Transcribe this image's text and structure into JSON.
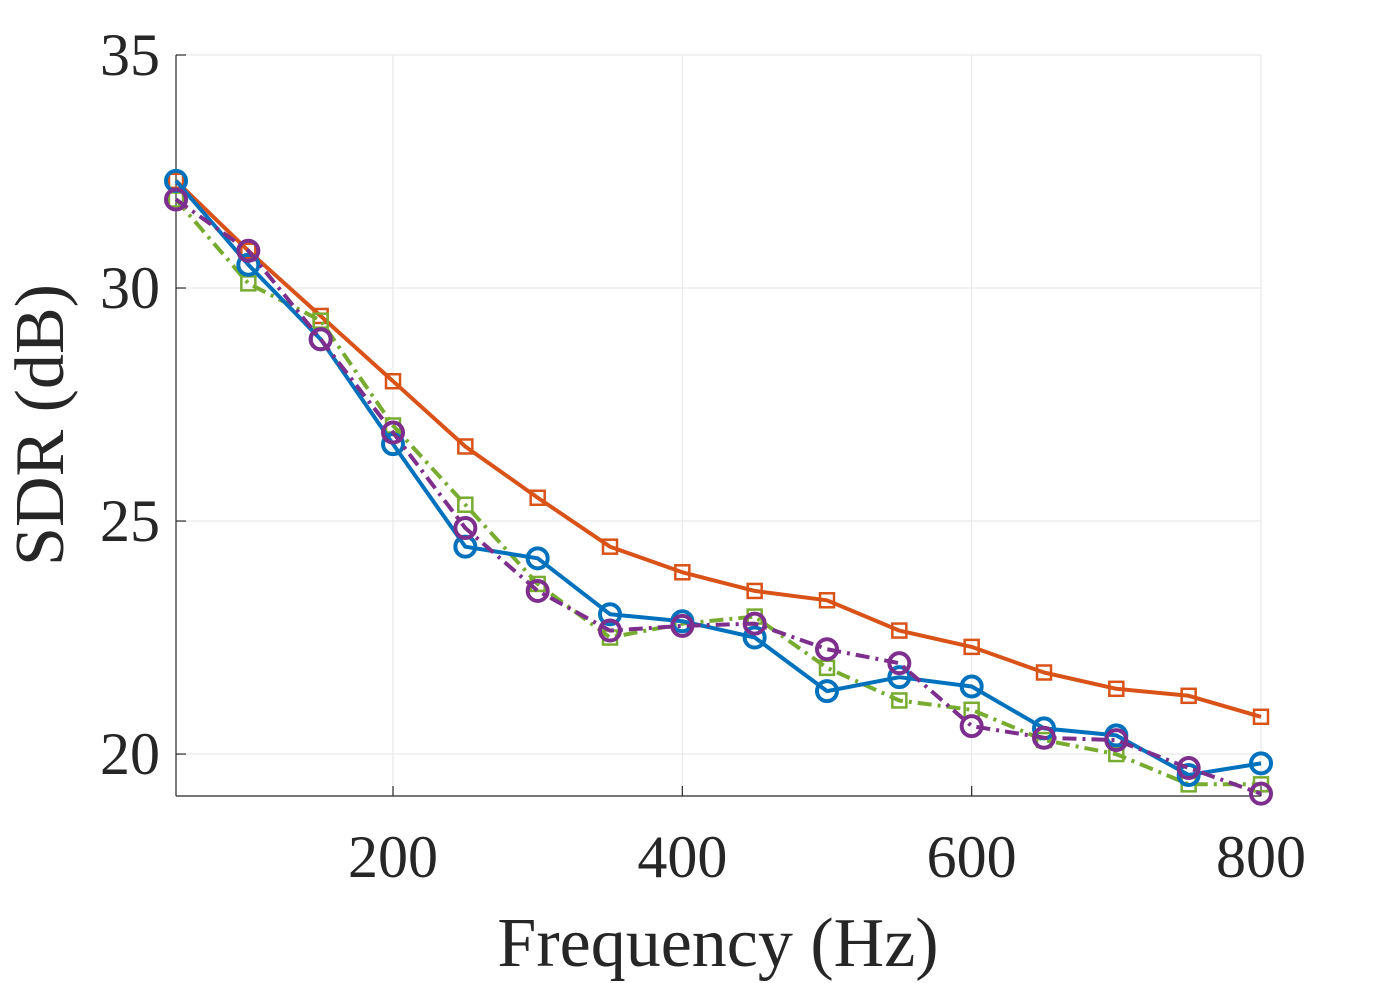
{
  "chart_data": {
    "type": "line",
    "title": "",
    "xlabel": "Frequency (Hz)",
    "ylabel": "SDR (dB)",
    "xlim": [
      50,
      800
    ],
    "ylim": [
      19.1,
      35
    ],
    "xticks": [
      200,
      400,
      600,
      800
    ],
    "yticks": [
      20,
      25,
      30,
      35
    ],
    "grid": true,
    "legend": "none",
    "x": [
      50,
      100,
      150,
      200,
      250,
      300,
      350,
      400,
      450,
      500,
      550,
      600,
      650,
      700,
      750,
      800
    ],
    "series": [
      {
        "color": "#D95319",
        "marker": "square",
        "line_style": "solid",
        "values": [
          32.3,
          30.8,
          29.4,
          28.0,
          26.6,
          25.5,
          24.45,
          23.9,
          23.5,
          23.3,
          22.65,
          22.3,
          21.75,
          21.4,
          21.25,
          20.8
        ]
      },
      {
        "color": "#77AC30",
        "marker": "square",
        "line_style": "dashdot",
        "values": [
          31.9,
          30.1,
          29.3,
          27.05,
          25.35,
          23.65,
          22.5,
          22.8,
          22.95,
          21.85,
          21.15,
          20.95,
          20.3,
          20.0,
          19.35,
          19.35
        ]
      },
      {
        "color": "#0072BD",
        "marker": "circle",
        "line_style": "solid",
        "values": [
          32.3,
          30.5,
          28.9,
          26.65,
          24.45,
          24.2,
          23.0,
          22.85,
          22.5,
          21.35,
          21.65,
          21.45,
          20.55,
          20.4,
          19.55,
          19.8
        ]
      },
      {
        "color": "#7E2F8E",
        "marker": "circle",
        "line_style": "dashdot",
        "values": [
          31.9,
          30.8,
          28.9,
          26.9,
          24.85,
          23.5,
          22.65,
          22.75,
          22.8,
          22.25,
          21.95,
          20.6,
          20.35,
          20.3,
          19.7,
          19.15
        ]
      }
    ]
  }
}
